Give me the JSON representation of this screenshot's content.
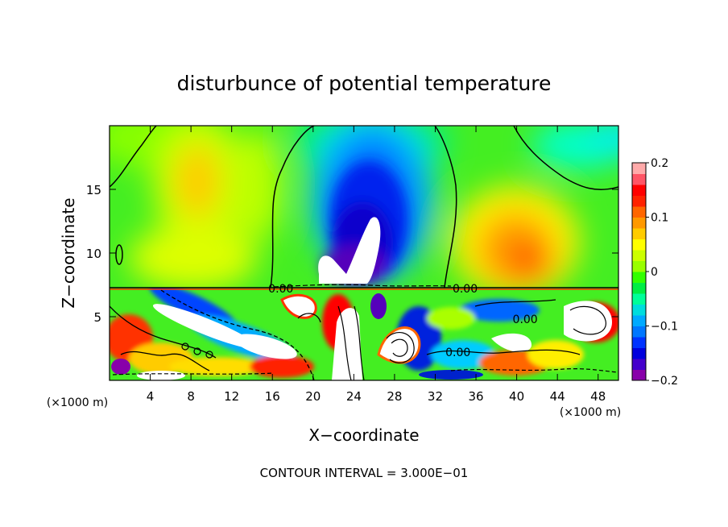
{
  "chart_data": {
    "type": "heatmap",
    "title": "disturbunce of potential temperature",
    "xlabel": "X−coordinate",
    "ylabel": "Z−coordinate",
    "x_unit_left": "(×1000 m)",
    "x_unit_right": "(×1000 m)",
    "xlim": [
      0,
      50
    ],
    "ylim": [
      0,
      20
    ],
    "x_ticks": [
      4,
      8,
      12,
      16,
      20,
      24,
      28,
      32,
      36,
      40,
      44,
      48
    ],
    "x_tick_labels": [
      "4",
      "8",
      "12",
      "16",
      "20",
      "24",
      "28",
      "32",
      "36",
      "40",
      "44",
      "48"
    ],
    "y_ticks": [
      5,
      10,
      15
    ],
    "y_tick_labels": [
      "5",
      "10",
      "15"
    ],
    "colorbar": {
      "range": [
        -0.2,
        0.2
      ],
      "ticks": [
        0.2,
        0.1,
        0,
        -0.1,
        -0.2
      ],
      "tick_labels": [
        "0.2",
        "0.1",
        "0",
        "−0.1",
        "−0.2"
      ],
      "colors": [
        "#8800aa",
        "#4400cc",
        "#0000dd",
        "#0033ff",
        "#0077ff",
        "#00aaff",
        "#00dddd",
        "#00ff99",
        "#00ee44",
        "#33ff00",
        "#99ff00",
        "#ccff00",
        "#ffff00",
        "#ffcc00",
        "#ff9900",
        "#ff6600",
        "#ff2200",
        "#ff0000",
        "#ff5566",
        "#ffaaaa"
      ]
    },
    "contour_labels": [
      {
        "text": "0.00",
        "x": 15.6,
        "z": 7.2
      },
      {
        "text": "0.00",
        "x": 33.7,
        "z": 7.2
      },
      {
        "text": "0.00",
        "x": 39.6,
        "z": 4.8
      },
      {
        "text": "0.00",
        "x": 33.0,
        "z": 2.2
      }
    ],
    "footer": "CONTOUR INTERVAL = 3.000E−01"
  }
}
